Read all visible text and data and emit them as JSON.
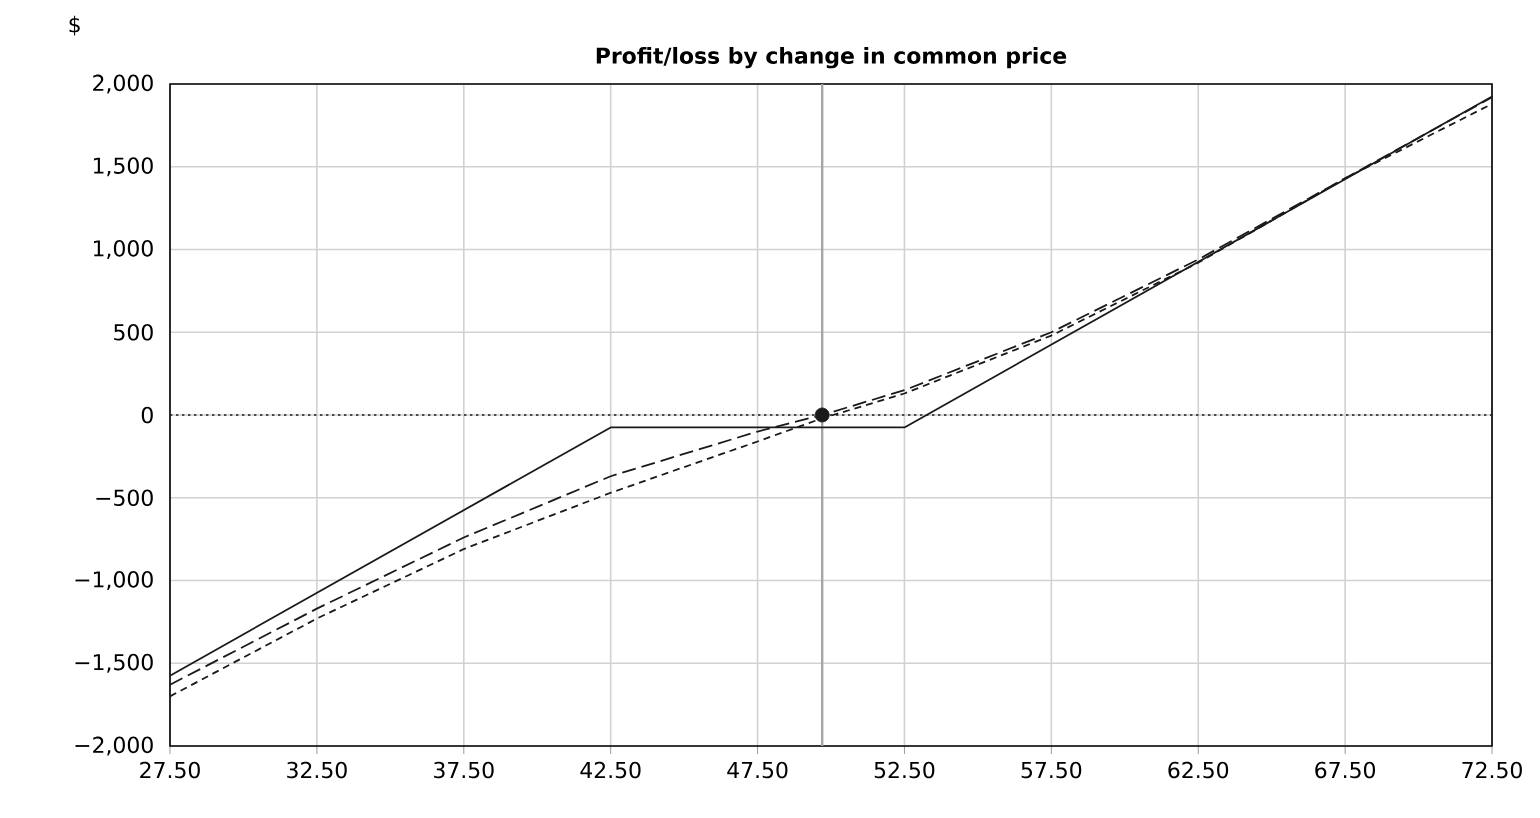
{
  "chart_data": {
    "type": "line",
    "title": "Profit/loss by change in common price",
    "ylabel": "$",
    "xlim": [
      27.5,
      72.5
    ],
    "ylim": [
      -2000,
      2000
    ],
    "xticks": [
      {
        "value": 27.5,
        "label": "27.50"
      },
      {
        "value": 32.5,
        "label": "32.50"
      },
      {
        "value": 37.5,
        "label": "37.50"
      },
      {
        "value": 42.5,
        "label": "42.50"
      },
      {
        "value": 47.5,
        "label": "47.50"
      },
      {
        "value": 52.5,
        "label": "52.50"
      },
      {
        "value": 57.5,
        "label": "57.50"
      },
      {
        "value": 62.5,
        "label": "62.50"
      },
      {
        "value": 67.5,
        "label": "67.50"
      },
      {
        "value": 72.5,
        "label": "72.50"
      }
    ],
    "yticks": [
      {
        "value": 2000,
        "label": "2,000"
      },
      {
        "value": 1500,
        "label": "1,500"
      },
      {
        "value": 1000,
        "label": "1,000"
      },
      500,
      0,
      {
        "value": -500,
        "label": "−500"
      },
      {
        "value": -1000,
        "label": "−1,000"
      },
      {
        "value": -1500,
        "label": "−1,500"
      },
      {
        "value": -2000,
        "label": "−2,000"
      }
    ],
    "grid": true,
    "series": [
      {
        "color": "#1a1a1a",
        "line_style": "solid",
        "x": [
          27.5,
          42.5,
          52.5,
          72.5
        ],
        "values": [
          -1575,
          -75,
          -75,
          1925
        ]
      },
      {
        "color": "#1a1a1a",
        "line_style": "dashed",
        "x": [
          27.5,
          32.5,
          37.5,
          42.5,
          47.5,
          49.7,
          52.5,
          57.5,
          62.5,
          67.5,
          72.5
        ],
        "values": [
          -1630,
          -1170,
          -740,
          -370,
          -100,
          0,
          150,
          500,
          940,
          1430,
          1920
        ]
      },
      {
        "color": "#1a1a1a",
        "line_style": "dashed",
        "x": [
          27.5,
          32.5,
          37.5,
          42.5,
          47.5,
          49.7,
          52.5,
          57.5,
          62.5,
          67.5,
          72.5
        ],
        "values": [
          -1700,
          -1230,
          -810,
          -470,
          -160,
          -20,
          130,
          480,
          920,
          1430,
          1880
        ]
      },
      {
        "type": "scatter",
        "marker": "circle",
        "color": "#1a1a1a",
        "x": [
          49.7
        ],
        "values": [
          0
        ]
      }
    ],
    "ref_lines": [
      {
        "axis": "y",
        "value": 0,
        "line_style": "dotted",
        "color": "#1a1a1a"
      },
      {
        "axis": "x",
        "value": 49.7,
        "line_style": "solid",
        "color": "#a6a6a6"
      }
    ]
  }
}
